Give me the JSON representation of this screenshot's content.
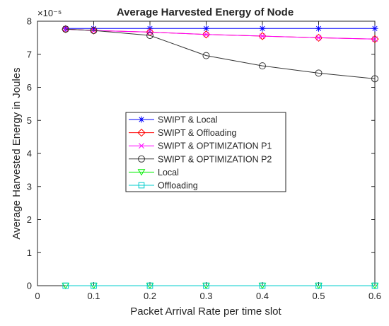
{
  "chart_data": {
    "type": "line",
    "title": "Average Harvested Energy of Node",
    "xlabel": "Packet Arrival Rate per time slot",
    "ylabel": "Average Harvested Energy in Joules",
    "y_multiplier_label": "×10⁻⁵",
    "xlim": [
      0,
      0.6
    ],
    "ylim": [
      0,
      8
    ],
    "x_ticks": [
      0,
      0.1,
      0.2,
      0.3,
      0.4,
      0.5,
      0.6
    ],
    "x_tick_labels": [
      "0",
      "0.1",
      "0.2",
      "0.3",
      "0.4",
      "0.5",
      "0.6"
    ],
    "y_ticks": [
      0,
      1,
      2,
      3,
      4,
      5,
      6,
      7,
      8
    ],
    "y_tick_labels": [
      "0",
      "1",
      "2",
      "3",
      "4",
      "5",
      "6",
      "7",
      "8"
    ],
    "grid": false,
    "legend_position": "center",
    "x": [
      0.05,
      0.1,
      0.2,
      0.3,
      0.4,
      0.5,
      0.6
    ],
    "series": [
      {
        "name": "SWIPT & Local",
        "color": "#0000ff",
        "marker": "asterisk",
        "values": [
          7.78,
          7.78,
          7.78,
          7.78,
          7.78,
          7.78,
          7.78
        ]
      },
      {
        "name": "SWIPT & Offloading",
        "color": "#ff0000",
        "marker": "diamond",
        "values": [
          7.76,
          7.72,
          7.67,
          7.6,
          7.55,
          7.5,
          7.46
        ]
      },
      {
        "name": "SWIPT & OPTIMIZATION P1",
        "color": "#ff00ff",
        "marker": "x",
        "values": [
          7.76,
          7.72,
          7.67,
          7.6,
          7.55,
          7.5,
          7.46
        ]
      },
      {
        "name": "SWIPT & OPTIMIZATION P2",
        "color": "#333333",
        "marker": "circle",
        "values": [
          7.76,
          7.72,
          7.57,
          6.96,
          6.65,
          6.43,
          6.26
        ]
      },
      {
        "name": "Local",
        "color": "#00ee00",
        "marker": "triangle-down",
        "values": [
          0,
          0,
          0,
          0,
          0,
          0,
          0
        ]
      },
      {
        "name": "Offloading",
        "color": "#00cccc",
        "marker": "square",
        "values": [
          0,
          0,
          0,
          0,
          0,
          0,
          0
        ]
      }
    ]
  }
}
